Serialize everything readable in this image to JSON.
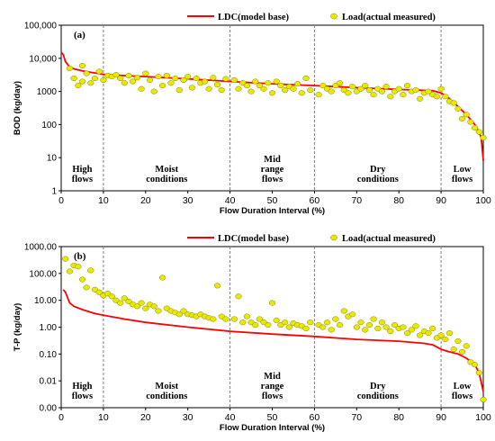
{
  "colors": {
    "ldc_line": "#ff0000",
    "load_fill": "#e8e800",
    "load_stroke": "#8a8a00",
    "zone_divider": "#808080",
    "axis": "#000000"
  },
  "chart_data": [
    {
      "type": "scatter",
      "panel_label": "(a)",
      "xlabel": "Flow Duration Interval (%)",
      "ylabel": "BOD (kg/day)",
      "yscale": "log",
      "xlim": [
        0,
        100
      ],
      "ylim": [
        1,
        100000
      ],
      "x_ticks": [
        "0",
        "10",
        "20",
        "30",
        "40",
        "50",
        "60",
        "70",
        "80",
        "90",
        "100"
      ],
      "y_ticks": [
        {
          "value": 1,
          "label": "1"
        },
        {
          "value": 10,
          "label": "10"
        },
        {
          "value": 100,
          "label": "100"
        },
        {
          "value": 1000,
          "label": "1000"
        },
        {
          "value": 10000,
          "label": "10,000"
        },
        {
          "value": 100000,
          "label": "100,000"
        }
      ],
      "legend": {
        "ldc": "LDC(model  base)",
        "load": "Load(actual  measured)"
      },
      "zone_dividers": [
        10,
        40,
        60,
        90
      ],
      "zones": [
        {
          "lines": [
            "High",
            "flows"
          ],
          "x": 5
        },
        {
          "lines": [
            "Moist",
            "conditions"
          ],
          "x": 25
        },
        {
          "lines": [
            "Mid",
            "range",
            "flows"
          ],
          "x": 50
        },
        {
          "lines": [
            "Dry",
            "conditions"
          ],
          "x": 75
        },
        {
          "lines": [
            "Low",
            "flows"
          ],
          "x": 95
        }
      ],
      "series": [
        {
          "name": "LDC(model  base)",
          "kind": "line",
          "x": [
            0,
            0.5,
            1,
            2,
            3,
            5,
            8,
            10,
            15,
            20,
            30,
            40,
            50,
            60,
            70,
            80,
            88,
            90,
            92,
            94,
            96,
            98,
            99,
            99.5,
            100
          ],
          "y": [
            15000,
            13000,
            8000,
            5500,
            4800,
            4200,
            3600,
            3300,
            3000,
            2800,
            2400,
            2000,
            1700,
            1500,
            1300,
            1150,
            1050,
            900,
            600,
            350,
            200,
            100,
            60,
            40,
            8
          ]
        },
        {
          "name": "Load(actual  measured)",
          "kind": "scatter",
          "x": [
            2,
            3,
            4,
            5,
            5,
            6,
            7,
            8,
            9,
            10,
            11,
            12,
            13,
            14,
            15,
            16,
            17,
            18,
            19,
            20,
            21,
            22,
            23,
            24,
            25,
            26,
            27,
            28,
            29,
            30,
            31,
            32,
            33,
            34,
            35,
            36,
            37,
            38,
            39,
            41,
            42,
            43,
            44,
            45,
            46,
            47,
            48,
            49,
            50,
            51,
            52,
            53,
            54,
            55,
            56,
            57,
            58,
            59,
            61,
            62,
            63,
            64,
            65,
            66,
            67,
            68,
            69,
            70,
            71,
            72,
            73,
            74,
            75,
            76,
            77,
            78,
            79,
            80,
            81,
            82,
            83,
            84,
            85,
            86,
            87,
            88,
            89,
            90,
            91,
            92,
            93,
            94,
            95,
            96,
            97,
            98,
            99,
            100
          ],
          "y": [
            5000,
            2500,
            1500,
            6000,
            2000,
            3500,
            1800,
            2500,
            4000,
            2200,
            3000,
            2800,
            3200,
            2500,
            1800,
            3000,
            2000,
            2600,
            1200,
            3500,
            2200,
            1000,
            2800,
            1500,
            3000,
            1800,
            2500,
            1100,
            2200,
            2800,
            1300,
            2500,
            1800,
            2000,
            1200,
            2600,
            1600,
            1100,
            2400,
            2200,
            1200,
            1800,
            1500,
            1000,
            2000,
            1500,
            1200,
            1800,
            900,
            2000,
            1500,
            1100,
            1400,
            1200,
            1700,
            900,
            2500,
            1100,
            800,
            1500,
            1200,
            1000,
            1500,
            1800,
            1100,
            900,
            1400,
            1000,
            1200,
            1500,
            1100,
            800,
            1200,
            1000,
            1400,
            700,
            1000,
            1200,
            800,
            1500,
            1000,
            1100,
            600,
            900,
            1000,
            800,
            700,
            1200,
            700,
            500,
            450,
            300,
            150,
            200,
            120,
            80,
            60,
            40
          ]
        }
      ]
    },
    {
      "type": "scatter",
      "panel_label": "(b)",
      "xlabel": "Flow Duration Interval (%)",
      "ylabel": "T-P (kg/day)",
      "yscale": "log",
      "xlim": [
        0,
        100
      ],
      "ylim": [
        0.001,
        1000
      ],
      "x_ticks": [
        "0",
        "10",
        "20",
        "30",
        "40",
        "50",
        "60",
        "70",
        "80",
        "90",
        "100"
      ],
      "y_ticks": [
        {
          "value": 0.001,
          "label": "0.00"
        },
        {
          "value": 0.01,
          "label": "0.01"
        },
        {
          "value": 0.1,
          "label": "0.10"
        },
        {
          "value": 1,
          "label": "1.00"
        },
        {
          "value": 10,
          "label": "10.00"
        },
        {
          "value": 100,
          "label": "100.00"
        },
        {
          "value": 1000,
          "label": "1000.00"
        }
      ],
      "legend": {
        "ldc": "LDC(model  base)",
        "load": "Load(actual  measured)"
      },
      "zone_dividers": [
        10,
        40,
        60,
        90
      ],
      "zones": [
        {
          "lines": [
            "High",
            "flows"
          ],
          "x": 5
        },
        {
          "lines": [
            "Moist",
            "conditions"
          ],
          "x": 25
        },
        {
          "lines": [
            "Mid",
            "range",
            "flows"
          ],
          "x": 50
        },
        {
          "lines": [
            "Dry",
            "conditions"
          ],
          "x": 75
        },
        {
          "lines": [
            "Low",
            "flows"
          ],
          "x": 95
        }
      ],
      "series": [
        {
          "name": "LDC(model  base)",
          "kind": "line",
          "x": [
            0.5,
            1,
            2,
            3,
            5,
            8,
            10,
            15,
            20,
            30,
            40,
            50,
            60,
            70,
            80,
            86,
            88,
            90,
            92,
            94,
            96,
            98,
            99,
            100
          ],
          "y": [
            25,
            20,
            8,
            6,
            4.5,
            3.2,
            2.8,
            2.0,
            1.5,
            1.0,
            0.7,
            0.55,
            0.45,
            0.35,
            0.3,
            0.25,
            0.22,
            0.15,
            0.12,
            0.1,
            0.07,
            0.04,
            0.02,
            0.004
          ]
        },
        {
          "name": "Load(actual  measured)",
          "kind": "scatter",
          "x": [
            1,
            2,
            3,
            4,
            5,
            6,
            7,
            8,
            9,
            10,
            11,
            12,
            13,
            14,
            15,
            16,
            17,
            18,
            19,
            20,
            21,
            22,
            23,
            24,
            25,
            26,
            27,
            28,
            29,
            30,
            31,
            32,
            33,
            34,
            35,
            36,
            37,
            38,
            39,
            41,
            42,
            43,
            44,
            45,
            46,
            47,
            48,
            49,
            50,
            51,
            52,
            53,
            54,
            55,
            56,
            57,
            58,
            59,
            61,
            62,
            63,
            64,
            65,
            66,
            67,
            68,
            69,
            70,
            71,
            72,
            73,
            74,
            75,
            76,
            77,
            78,
            79,
            80,
            81,
            82,
            83,
            84,
            85,
            86,
            87,
            88,
            89,
            90,
            91,
            92,
            93,
            94,
            95,
            96,
            97,
            98,
            99,
            100
          ],
          "y": [
            350,
            120,
            200,
            180,
            60,
            30,
            130,
            25,
            20,
            15,
            18,
            14,
            10,
            8,
            12,
            9,
            7,
            6,
            8,
            5,
            7,
            6,
            4,
            70,
            5,
            4,
            3.5,
            3,
            4,
            3,
            2.8,
            2.5,
            3,
            2.5,
            2.2,
            2,
            35,
            2.5,
            2,
            2,
            14,
            1.5,
            2.5,
            1.5,
            1.2,
            2,
            1.5,
            1.2,
            8,
            1.8,
            1.2,
            1.5,
            1,
            1.4,
            1.2,
            1.1,
            0.9,
            1.5,
            1.2,
            1,
            1.5,
            0.8,
            2,
            1.2,
            4,
            2.5,
            3,
            1,
            1.5,
            0.8,
            1.2,
            2,
            0.9,
            1.5,
            1,
            0.7,
            1.2,
            0.9,
            1,
            0.6,
            0.8,
            1.1,
            0.5,
            0.7,
            0.6,
            0.9,
            0.4,
            0.5,
            0.35,
            0.6,
            0.15,
            0.3,
            0.12,
            0.2,
            0.05,
            0.04,
            0.02,
            0.002
          ]
        }
      ]
    }
  ]
}
